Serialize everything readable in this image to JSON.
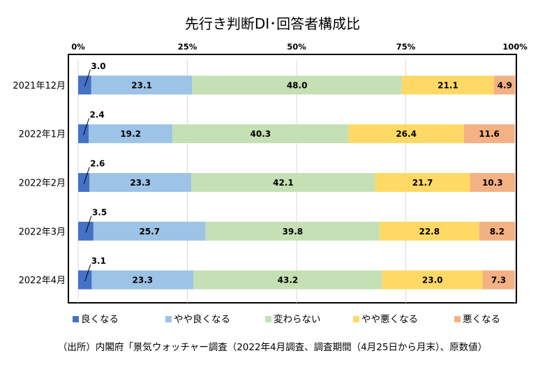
{
  "chart_data": {
    "type": "bar",
    "orientation": "horizontal",
    "stacked": "100%",
    "title": "先行き判断DI･回答者構成比",
    "xticks": [
      "0%",
      "25%",
      "50%",
      "75%",
      "100%"
    ],
    "xlim": [
      0,
      100
    ],
    "grid": true,
    "legend_position": "bottom",
    "categories": [
      "2021年12月",
      "2022年1月",
      "2022年2月",
      "2022年3月",
      "2022年4月"
    ],
    "series": [
      {
        "name": "良くなる",
        "color": "#4472C4",
        "values": [
          3.0,
          2.4,
          2.6,
          3.5,
          3.1
        ]
      },
      {
        "name": "やや良くなる",
        "color": "#9DC3E6",
        "values": [
          23.1,
          19.2,
          23.3,
          25.7,
          23.3
        ]
      },
      {
        "name": "変わらない",
        "color": "#C5E0B4",
        "values": [
          48.0,
          40.3,
          42.1,
          39.8,
          43.2
        ]
      },
      {
        "name": "やや悪くなる",
        "color": "#FFD966",
        "values": [
          21.1,
          26.4,
          21.7,
          22.8,
          23.0
        ]
      },
      {
        "name": "悪くなる",
        "color": "#F4B183",
        "values": [
          4.9,
          11.6,
          10.3,
          8.2,
          7.3
        ]
      }
    ]
  },
  "source_note": "（出所）内閣府「景気ウォッチャー調査（2022年4月調査、調査期間（4月25日から月末）、原数値）"
}
